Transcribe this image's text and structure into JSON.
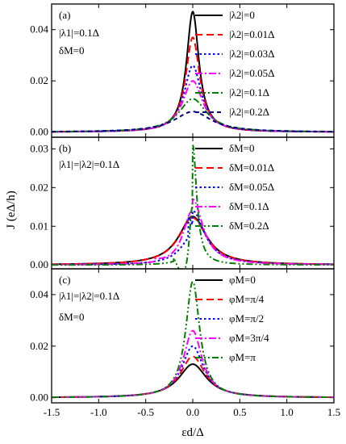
{
  "figure": {
    "xlabel": "εd/Δ",
    "ylabel": "J (eΔ/h)"
  },
  "chart_data": [
    {
      "type": "line",
      "panel_label": "(a)",
      "annotations": [
        "|λ1|=0.1Δ",
        "δM=0"
      ],
      "xlabel": "εd/Δ",
      "ylabel": "J (eΔ/h)",
      "xlim": [
        -1.5,
        1.5
      ],
      "ylim": [
        -0.002,
        0.05
      ],
      "xticks": [
        "-1.5",
        "-1.0",
        "-0.5",
        "0.0",
        "0.5",
        "1.0",
        "1.5"
      ],
      "yticks": [
        "0.00",
        "0.02",
        "0.04"
      ],
      "legend_position": "top-right",
      "series": [
        {
          "name": "|λ2|=0",
          "color": "#000000",
          "dash": "solid",
          "kind": "lorentz",
          "peak": 0.047,
          "width": 0.08,
          "x0": 0
        },
        {
          "name": "|λ2|=0.01Δ",
          "color": "#ff0000",
          "dash": "dash",
          "kind": "lorentz",
          "peak": 0.037,
          "width": 0.09,
          "x0": 0
        },
        {
          "name": "|λ2|=0.03Δ",
          "color": "#0000ff",
          "dash": "dot",
          "kind": "lorentz",
          "peak": 0.026,
          "width": 0.11,
          "x0": 0
        },
        {
          "name": "|λ2|=0.05Δ",
          "color": "#ff00ff",
          "dash": "dashdot",
          "kind": "lorentz",
          "peak": 0.02,
          "width": 0.13,
          "x0": 0
        },
        {
          "name": "|λ2|=0.1Δ",
          "color": "#008000",
          "dash": "dashdotdot",
          "kind": "lorentz",
          "peak": 0.013,
          "width": 0.18,
          "x0": 0
        },
        {
          "name": "|λ2|=0.2Δ",
          "color": "#000080",
          "dash": "dash2",
          "kind": "lorentz",
          "peak": 0.008,
          "width": 0.24,
          "x0": 0
        }
      ]
    },
    {
      "type": "line",
      "panel_label": "(b)",
      "annotations": [
        "|λ1|=|λ2|=0.1Δ"
      ],
      "xlabel": "εd/Δ",
      "ylabel": "J (eΔ/h)",
      "xlim": [
        -1.5,
        1.5
      ],
      "ylim": [
        -0.001,
        0.033
      ],
      "xticks": [
        "-1.5",
        "-1.0",
        "-0.5",
        "0.0",
        "0.5",
        "1.0",
        "1.5"
      ],
      "yticks": [
        "0.00",
        "0.01",
        "0.02",
        "0.03"
      ],
      "legend_position": "top-right",
      "series": [
        {
          "name": "δM=0",
          "color": "#000000",
          "dash": "solid",
          "kind": "lorentz",
          "peak": 0.0125,
          "width": 0.18,
          "x0": 0
        },
        {
          "name": "δM=0.01Δ",
          "color": "#ff0000",
          "dash": "dash",
          "kind": "lorentz",
          "peak": 0.0122,
          "width": 0.18,
          "x0": 0
        },
        {
          "name": "δM=0.05Δ",
          "color": "#0000ff",
          "dash": "dot",
          "kind": "asym",
          "peak": 0.014,
          "width": 0.15,
          "x0": 0,
          "jump": -0.05,
          "jumpDrop": 0.004
        },
        {
          "name": "δM=0.1Δ",
          "color": "#ff00ff",
          "dash": "dashdot",
          "kind": "asym",
          "peak": 0.017,
          "width": 0.13,
          "x0": 0,
          "jump": -0.4,
          "jumpDrop": 0.003
        },
        {
          "name": "δM=0.2Δ",
          "color": "#008000",
          "dash": "dashdotdot",
          "kind": "asym",
          "peak": 0.031,
          "width": 0.05,
          "x0": 0,
          "jump": -0.2,
          "jumpDrop": 0.016
        }
      ]
    },
    {
      "type": "line",
      "panel_label": "(c)",
      "annotations": [
        "|λ1|=|λ2|=0.1Δ",
        "δM=0"
      ],
      "xlabel": "εd/Δ",
      "ylabel": "J (eΔ/h)",
      "xlim": [
        -1.5,
        1.5
      ],
      "ylim": [
        -0.002,
        0.05
      ],
      "xticks": [
        "-1.5",
        "-1.0",
        "-0.5",
        "0.0",
        "0.5",
        "1.0",
        "1.5"
      ],
      "yticks": [
        "0.00",
        "0.02",
        "0.04"
      ],
      "legend_position": "top-right",
      "series": [
        {
          "name": "φM=0",
          "color": "#000000",
          "dash": "solid",
          "kind": "lorentz",
          "peak": 0.013,
          "width": 0.18,
          "x0": 0
        },
        {
          "name": "φM=π/4",
          "color": "#ff0000",
          "dash": "dash",
          "kind": "lorentz",
          "peak": 0.016,
          "width": 0.16,
          "x0": 0
        },
        {
          "name": "φM=π/2",
          "color": "#0000ff",
          "dash": "dot",
          "kind": "lorentz",
          "peak": 0.02,
          "width": 0.14,
          "x0": 0
        },
        {
          "name": "φM=3π/4",
          "color": "#ff00ff",
          "dash": "dashdot",
          "kind": "lorentz",
          "peak": 0.026,
          "width": 0.12,
          "x0": 0
        },
        {
          "name": "φM=π",
          "color": "#008000",
          "dash": "dashdotdot",
          "kind": "lorentz",
          "peak": 0.045,
          "width": 0.09,
          "x0": 0
        }
      ]
    }
  ]
}
